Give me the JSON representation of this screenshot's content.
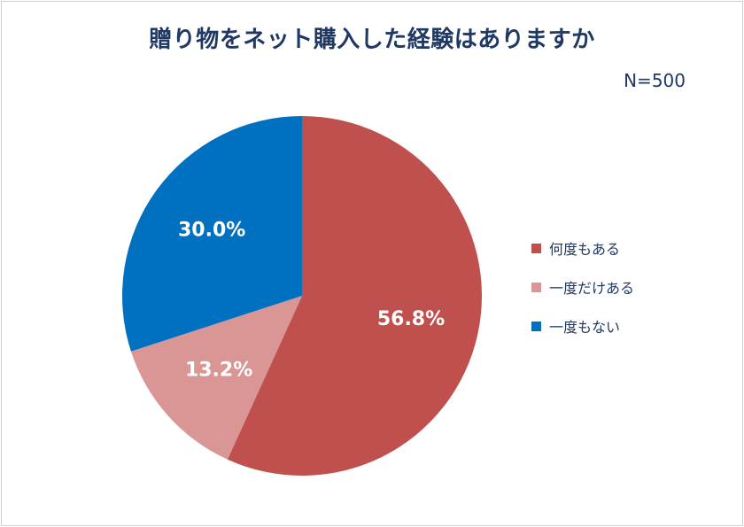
{
  "chart_data": {
    "type": "pie",
    "title": "贈り物をネット購入した経験はありますか",
    "note": "N=500",
    "categories": [
      "何度もある",
      "一度だけある",
      "一度もない"
    ],
    "values": [
      56.8,
      13.2,
      30.0
    ],
    "value_labels": [
      "56.8%",
      "13.2%",
      "30.0%"
    ],
    "colors": [
      "#c0504d",
      "#d99694",
      "#0070c0"
    ],
    "legend_position": "right",
    "start_angle_deg": 0,
    "direction": "clockwise"
  }
}
